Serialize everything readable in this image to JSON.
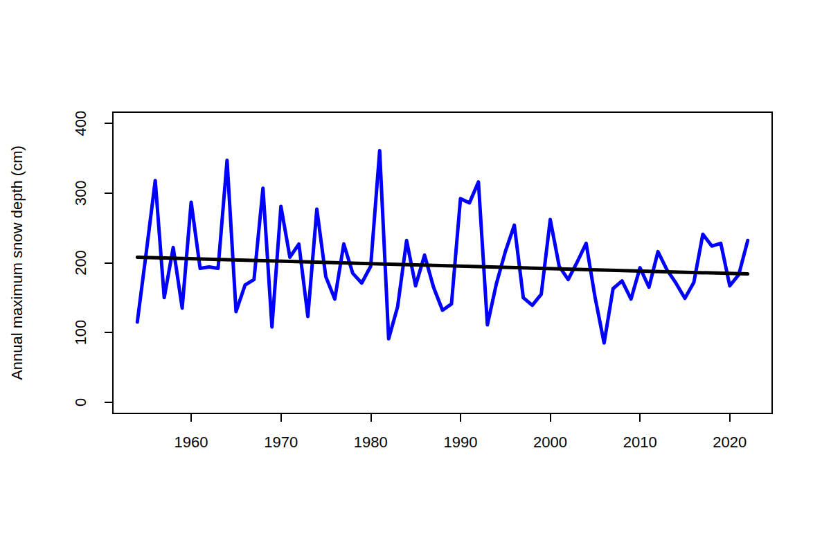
{
  "chart_data": {
    "type": "line",
    "y_label": "Annual maximum snow depth (cm)",
    "xlim": [
      1951.28,
      2024.72
    ],
    "xticks": [
      1960,
      1970,
      1980,
      1990,
      2000,
      2010,
      2020
    ],
    "ylim": [
      -16,
      416
    ],
    "yticks": [
      0,
      100,
      200,
      300,
      400
    ],
    "grid": false,
    "series": [
      {
        "color": "#0000ff",
        "line_style": "solid",
        "x": [
          1954,
          1955,
          1956,
          1957,
          1958,
          1959,
          1960,
          1961,
          1962,
          1963,
          1964,
          1965,
          1966,
          1967,
          1968,
          1969,
          1970,
          1971,
          1972,
          1973,
          1974,
          1975,
          1976,
          1977,
          1978,
          1979,
          1980,
          1981,
          1982,
          1983,
          1984,
          1985,
          1986,
          1987,
          1988,
          1989,
          1990,
          1991,
          1992,
          1993,
          1994,
          1995,
          1996,
          1997,
          1998,
          1999,
          2000,
          2001,
          2002,
          2003,
          2004,
          2005,
          2006,
          2007,
          2008,
          2009,
          2010,
          2011,
          2012,
          2013,
          2014,
          2015,
          2016,
          2017,
          2018,
          2019,
          2020,
          2021,
          2022
        ],
        "values": [
          115,
          215,
          318,
          150,
          222,
          135,
          287,
          192,
          194,
          192,
          347,
          130,
          168,
          176,
          307,
          108,
          281,
          208,
          227,
          123,
          277,
          180,
          148,
          227,
          185,
          171,
          195,
          361,
          91,
          137,
          232,
          167,
          211,
          165,
          132,
          141,
          292,
          286,
          316,
          111,
          170,
          216,
          254,
          150,
          139,
          155,
          262,
          195,
          176,
          201,
          228,
          150,
          85,
          163,
          174,
          148,
          193,
          165,
          216,
          190,
          171,
          149,
          172,
          241,
          224,
          228,
          167,
          183,
          232
        ]
      },
      {
        "color": "#000000",
        "line_style": "solid",
        "x": [
          1954,
          2022
        ],
        "values": [
          208,
          184
        ]
      }
    ]
  }
}
